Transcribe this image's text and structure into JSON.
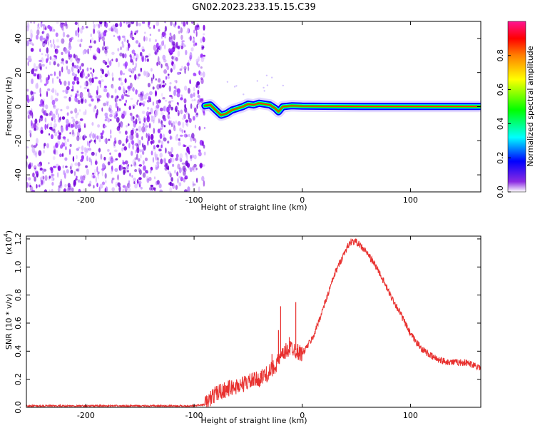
{
  "title": "GN02.2023.233.15.15.C39",
  "chart_data": [
    {
      "type": "heatmap",
      "xlabel": "Height of straight line (km)",
      "ylabel": "Frequency (Hz)",
      "xlim": [
        -255,
        165
      ],
      "ylim": [
        -50,
        50
      ],
      "x_ticks": [
        -200,
        -100,
        0,
        100
      ],
      "x_tick_labels": [
        "-200",
        "-100",
        "0",
        "100"
      ],
      "y_ticks": [
        -40,
        -20,
        0,
        20,
        40
      ],
      "y_tick_labels": [
        "-40",
        "-20",
        "0",
        "20",
        "40"
      ],
      "noise_region_x": [
        -255,
        -90
      ],
      "signal_track": [
        {
          "x": -90,
          "f": 0.5
        },
        {
          "x": -85,
          "f": 1
        },
        {
          "x": -80,
          "f": -2
        },
        {
          "x": -75,
          "f": -5
        },
        {
          "x": -70,
          "f": -4
        },
        {
          "x": -65,
          "f": -2
        },
        {
          "x": -60,
          "f": -1
        },
        {
          "x": -55,
          "f": 0
        },
        {
          "x": -50,
          "f": 1.5
        },
        {
          "x": -45,
          "f": 1
        },
        {
          "x": -40,
          "f": 2
        },
        {
          "x": -35,
          "f": 1.5
        },
        {
          "x": -30,
          "f": 1
        },
        {
          "x": -25,
          "f": -1
        },
        {
          "x": -22,
          "f": -3
        },
        {
          "x": -18,
          "f": 0
        },
        {
          "x": -10,
          "f": 0.5
        },
        {
          "x": 0,
          "f": 0.3
        },
        {
          "x": 20,
          "f": 0.2
        },
        {
          "x": 60,
          "f": 0.1
        },
        {
          "x": 165,
          "f": 0.1
        }
      ],
      "colorbar": {
        "label": "Normalized spectral amplitude",
        "range": [
          0,
          1
        ],
        "ticks": [
          0.0,
          0.2,
          0.4,
          0.6,
          0.8
        ],
        "tick_labels": [
          "0.0",
          "0.2",
          "0.4",
          "0.6",
          "0.8"
        ],
        "colormap": [
          "#ffffff",
          "#8a2be2",
          "#0000ff",
          "#00ffff",
          "#00ff00",
          "#ffff00",
          "#ff8000",
          "#ff0000",
          "#ff1493"
        ]
      }
    },
    {
      "type": "line",
      "xlabel": "Height of straight line (km)",
      "ylabel": "SNR (10 * v/v)",
      "scale_label": "(x10",
      "scale_exponent": "4",
      "scale_close": ")",
      "xlim": [
        -255,
        165
      ],
      "ylim": [
        0,
        1.22
      ],
      "x_ticks": [
        -200,
        -100,
        0,
        100
      ],
      "x_tick_labels": [
        "-200",
        "-100",
        "0",
        "100"
      ],
      "y_ticks": [
        0.0,
        0.2,
        0.4,
        0.6,
        0.8,
        1.0,
        1.2
      ],
      "y_tick_labels": [
        "0.0",
        "0.2",
        "0.4",
        "0.6",
        "0.8",
        "1.0",
        "1.2"
      ],
      "color": "#e8312f",
      "series": [
        {
          "x": [
            -255,
            -200,
            -150,
            -100,
            -90,
            -80,
            -70,
            -60,
            -50,
            -40,
            -30,
            -25,
            -20,
            -15,
            -10,
            -5,
            0,
            10,
            20,
            30,
            40,
            45,
            50,
            60,
            70,
            80,
            90,
            100,
            110,
            120,
            130,
            140,
            150,
            160,
            165
          ],
          "values": [
            0.01,
            0.01,
            0.01,
            0.01,
            0.02,
            0.1,
            0.13,
            0.15,
            0.18,
            0.2,
            0.25,
            0.3,
            0.35,
            0.4,
            0.43,
            0.4,
            0.38,
            0.5,
            0.72,
            0.95,
            1.12,
            1.18,
            1.18,
            1.1,
            0.98,
            0.82,
            0.68,
            0.52,
            0.42,
            0.36,
            0.33,
            0.32,
            0.32,
            0.3,
            0.28
          ]
        }
      ],
      "spikes": [
        {
          "x": -65,
          "v": 0.15
        },
        {
          "x": -45,
          "v": 0.22
        },
        {
          "x": -38,
          "v": 0.26
        },
        {
          "x": -28,
          "v": 0.38
        },
        {
          "x": -22,
          "v": 0.55
        },
        {
          "x": -20,
          "v": 0.72
        },
        {
          "x": -12,
          "v": 0.5
        },
        {
          "x": -6,
          "v": 0.75
        }
      ]
    }
  ]
}
